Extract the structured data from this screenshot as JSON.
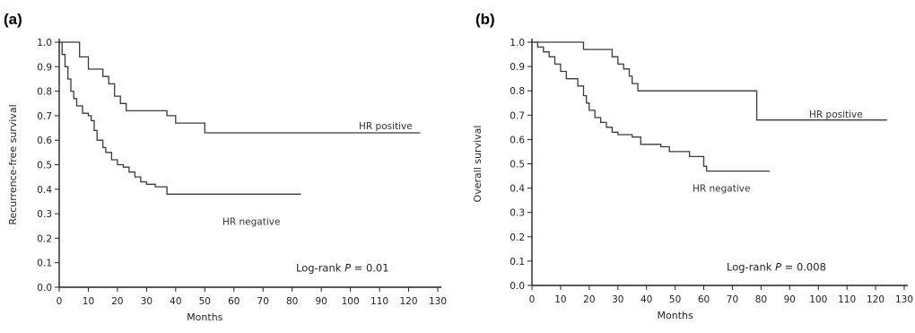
{
  "chart_data": [
    {
      "type": "line",
      "panel_label": "(a)",
      "xlabel": "Months",
      "ylabel": "Recurrence-free survival",
      "xlim": [
        0,
        130
      ],
      "ylim": [
        0,
        1
      ],
      "xticks": [
        0,
        10,
        20,
        30,
        40,
        50,
        60,
        70,
        80,
        90,
        100,
        110,
        120,
        130
      ],
      "yticks": [
        "0.0",
        "0.1",
        "0.2",
        "0.3",
        "0.4",
        "0.5",
        "0.6",
        "0.7",
        "0.8",
        "0.9",
        "1.0"
      ],
      "grid": false,
      "annotation_prefix": "Log-rank ",
      "annotation_p": "P",
      "annotation_suffix": " = 0.01",
      "series": [
        {
          "name": "HR positive",
          "step": true,
          "points": [
            [
              0,
              1.0
            ],
            [
              5,
              1.0
            ],
            [
              7,
              0.94
            ],
            [
              10,
              0.89
            ],
            [
              14,
              0.89
            ],
            [
              15,
              0.86
            ],
            [
              17,
              0.83
            ],
            [
              19,
              0.78
            ],
            [
              21,
              0.75
            ],
            [
              23,
              0.72
            ],
            [
              36,
              0.72
            ],
            [
              37,
              0.7
            ],
            [
              40,
              0.67
            ],
            [
              50,
              0.63
            ],
            [
              124,
              0.63
            ]
          ]
        },
        {
          "name": "HR negative",
          "step": true,
          "points": [
            [
              0,
              1.0
            ],
            [
              1,
              0.95
            ],
            [
              2,
              0.9
            ],
            [
              3,
              0.85
            ],
            [
              4,
              0.8
            ],
            [
              5,
              0.77
            ],
            [
              6,
              0.74
            ],
            [
              8,
              0.71
            ],
            [
              10,
              0.7
            ],
            [
              11,
              0.68
            ],
            [
              12,
              0.64
            ],
            [
              13,
              0.6
            ],
            [
              15,
              0.57
            ],
            [
              16,
              0.55
            ],
            [
              18,
              0.52
            ],
            [
              20,
              0.5
            ],
            [
              22,
              0.49
            ],
            [
              24,
              0.47
            ],
            [
              26,
              0.45
            ],
            [
              28,
              0.43
            ],
            [
              30,
              0.42
            ],
            [
              33,
              0.41
            ],
            [
              37,
              0.38
            ],
            [
              83,
              0.38
            ]
          ]
        }
      ]
    },
    {
      "type": "line",
      "panel_label": "(b)",
      "xlabel": "Months",
      "ylabel": "Overall survival",
      "xlim": [
        0,
        130
      ],
      "ylim": [
        0,
        1
      ],
      "xticks": [
        0,
        10,
        20,
        30,
        40,
        50,
        60,
        70,
        80,
        90,
        100,
        110,
        120,
        130
      ],
      "yticks": [
        "0.0",
        "0.1",
        "0.2",
        "0.3",
        "0.4",
        "0.5",
        "0.6",
        "0.7",
        "0.8",
        "0.9",
        "1.0"
      ],
      "grid": false,
      "annotation_prefix": "Log-rank ",
      "annotation_p": "P",
      "annotation_suffix": " = 0.008",
      "series": [
        {
          "name": "HR positive",
          "step": true,
          "points": [
            [
              0,
              1.0
            ],
            [
              17,
              1.0
            ],
            [
              18,
              0.97
            ],
            [
              27,
              0.97
            ],
            [
              28,
              0.94
            ],
            [
              30,
              0.91
            ],
            [
              32,
              0.89
            ],
            [
              34,
              0.86
            ],
            [
              35,
              0.83
            ],
            [
              37,
              0.8
            ],
            [
              78,
              0.8
            ],
            [
              78.5,
              0.68
            ],
            [
              124,
              0.68
            ]
          ]
        },
        {
          "name": "HR negative",
          "step": true,
          "points": [
            [
              0,
              1.0
            ],
            [
              2,
              0.98
            ],
            [
              4,
              0.96
            ],
            [
              6,
              0.94
            ],
            [
              8,
              0.91
            ],
            [
              10,
              0.88
            ],
            [
              12,
              0.85
            ],
            [
              16,
              0.82
            ],
            [
              18,
              0.78
            ],
            [
              19,
              0.75
            ],
            [
              20,
              0.72
            ],
            [
              22,
              0.69
            ],
            [
              24,
              0.67
            ],
            [
              26,
              0.65
            ],
            [
              28,
              0.63
            ],
            [
              30,
              0.62
            ],
            [
              35,
              0.61
            ],
            [
              38,
              0.58
            ],
            [
              45,
              0.57
            ],
            [
              48,
              0.55
            ],
            [
              55,
              0.53
            ],
            [
              60,
              0.49
            ],
            [
              61,
              0.47
            ],
            [
              83,
              0.47
            ]
          ]
        }
      ]
    }
  ]
}
